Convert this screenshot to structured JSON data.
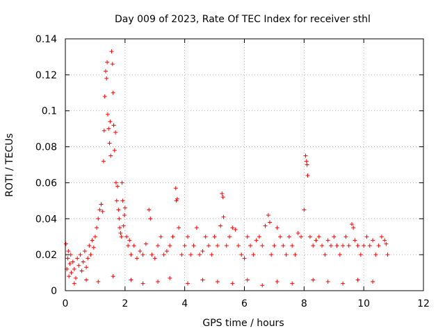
{
  "chart_data": {
    "type": "scatter",
    "title": "Day 009 of 2023, Rate Of TEC Index for receiver sthl",
    "xlabel": "GPS time / hours",
    "ylabel": "ROTI / TECUs",
    "xlim": [
      0,
      12
    ],
    "ylim": [
      0,
      0.14
    ],
    "xticks": [
      0,
      2,
      4,
      6,
      8,
      10,
      12
    ],
    "xtick_labels": [
      "0",
      "2",
      "4",
      "6",
      "8",
      "10",
      "12"
    ],
    "yticks": [
      0,
      0.02,
      0.04,
      0.06,
      0.08,
      0.1,
      0.12,
      0.14
    ],
    "ytick_labels": [
      "0",
      "0.02",
      "0.04",
      "0.06",
      "0.08",
      "0.1",
      "0.12",
      "0.14"
    ],
    "grid": true,
    "marker": "+",
    "marker_color": "#ff0000",
    "series": [
      {
        "name": "ROTI",
        "x": [
          0.02,
          0.05,
          0.08,
          0.1,
          0.12,
          0.15,
          0.18,
          0.2,
          0.25,
          0.3,
          0.35,
          0.4,
          0.45,
          0.5,
          0.55,
          0.6,
          0.65,
          0.7,
          0.75,
          0.8,
          0.85,
          0.9,
          0.95,
          1.0,
          1.05,
          1.1,
          1.15,
          1.2,
          1.25,
          1.28,
          1.3,
          1.32,
          1.35,
          1.38,
          1.4,
          1.42,
          1.45,
          1.48,
          1.5,
          1.52,
          1.55,
          1.58,
          1.6,
          1.62,
          1.65,
          1.68,
          1.7,
          1.72,
          1.75,
          1.78,
          1.8,
          1.82,
          1.85,
          1.88,
          1.9,
          1.92,
          1.95,
          1.98,
          2.0,
          2.05,
          2.1,
          2.15,
          2.2,
          2.3,
          2.4,
          2.5,
          2.6,
          2.7,
          2.8,
          2.85,
          2.9,
          3.0,
          3.1,
          3.2,
          3.3,
          3.4,
          3.5,
          3.6,
          3.7,
          3.72,
          3.75,
          3.8,
          3.9,
          4.0,
          4.1,
          4.2,
          4.3,
          4.4,
          4.5,
          4.6,
          4.7,
          4.8,
          4.9,
          5.0,
          5.1,
          5.2,
          5.25,
          5.28,
          5.3,
          5.4,
          5.5,
          5.6,
          5.7,
          5.8,
          5.9,
          6.0,
          6.1,
          6.2,
          6.3,
          6.4,
          6.5,
          6.6,
          6.7,
          6.8,
          6.85,
          6.9,
          7.0,
          7.1,
          7.2,
          7.3,
          7.4,
          7.5,
          7.6,
          7.7,
          7.8,
          7.9,
          8.0,
          8.05,
          8.08,
          8.1,
          8.12,
          8.2,
          8.3,
          8.4,
          8.5,
          8.6,
          8.7,
          8.8,
          8.9,
          9.0,
          9.1,
          9.2,
          9.3,
          9.4,
          9.5,
          9.6,
          9.65,
          9.7,
          9.8,
          9.9,
          10.0,
          10.1,
          10.2,
          10.3,
          10.4,
          10.5,
          10.6,
          10.7,
          10.75,
          10.8,
          0.3,
          0.7,
          1.1,
          1.6,
          2.2,
          2.6,
          3.1,
          3.5,
          4.1,
          4.6,
          5.1,
          5.6,
          6.1,
          6.6,
          7.1,
          7.6,
          8.3,
          8.8,
          9.3,
          9.8,
          10.3
        ],
        "y": [
          0.026,
          0.012,
          0.018,
          0.022,
          0.008,
          0.015,
          0.02,
          0.01,
          0.016,
          0.012,
          0.007,
          0.018,
          0.014,
          0.02,
          0.011,
          0.016,
          0.022,
          0.013,
          0.018,
          0.025,
          0.02,
          0.028,
          0.024,
          0.03,
          0.035,
          0.04,
          0.045,
          0.048,
          0.044,
          0.072,
          0.089,
          0.108,
          0.122,
          0.118,
          0.127,
          0.098,
          0.09,
          0.082,
          0.094,
          0.075,
          0.133,
          0.126,
          0.11,
          0.092,
          0.078,
          0.088,
          0.06,
          0.05,
          0.058,
          0.045,
          0.04,
          0.035,
          0.032,
          0.03,
          0.06,
          0.05,
          0.036,
          0.042,
          0.046,
          0.03,
          0.025,
          0.028,
          0.02,
          0.025,
          0.018,
          0.022,
          0.02,
          0.026,
          0.045,
          0.04,
          0.02,
          0.018,
          0.025,
          0.03,
          0.02,
          0.022,
          0.025,
          0.03,
          0.057,
          0.05,
          0.051,
          0.035,
          0.02,
          0.025,
          0.03,
          0.02,
          0.025,
          0.035,
          0.02,
          0.022,
          0.03,
          0.025,
          0.02,
          0.03,
          0.025,
          0.036,
          0.054,
          0.052,
          0.041,
          0.025,
          0.03,
          0.035,
          0.034,
          0.025,
          0.02,
          0.018,
          0.03,
          0.025,
          0.02,
          0.028,
          0.03,
          0.025,
          0.036,
          0.042,
          0.038,
          0.02,
          0.025,
          0.035,
          0.03,
          0.025,
          0.02,
          0.03,
          0.025,
          0.02,
          0.032,
          0.03,
          0.045,
          0.075,
          0.072,
          0.07,
          0.064,
          0.03,
          0.025,
          0.028,
          0.03,
          0.025,
          0.02,
          0.028,
          0.025,
          0.03,
          0.025,
          0.02,
          0.025,
          0.03,
          0.025,
          0.037,
          0.035,
          0.028,
          0.025,
          0.02,
          0.025,
          0.03,
          0.025,
          0.028,
          0.02,
          0.025,
          0.03,
          0.028,
          0.026,
          0.02,
          0.004,
          0.006,
          0.005,
          0.008,
          0.006,
          0.004,
          0.005,
          0.007,
          0.004,
          0.006,
          0.005,
          0.004,
          0.006,
          0.003,
          0.005,
          0.004,
          0.006,
          0.005,
          0.004,
          0.006,
          0.005
        ]
      }
    ]
  }
}
